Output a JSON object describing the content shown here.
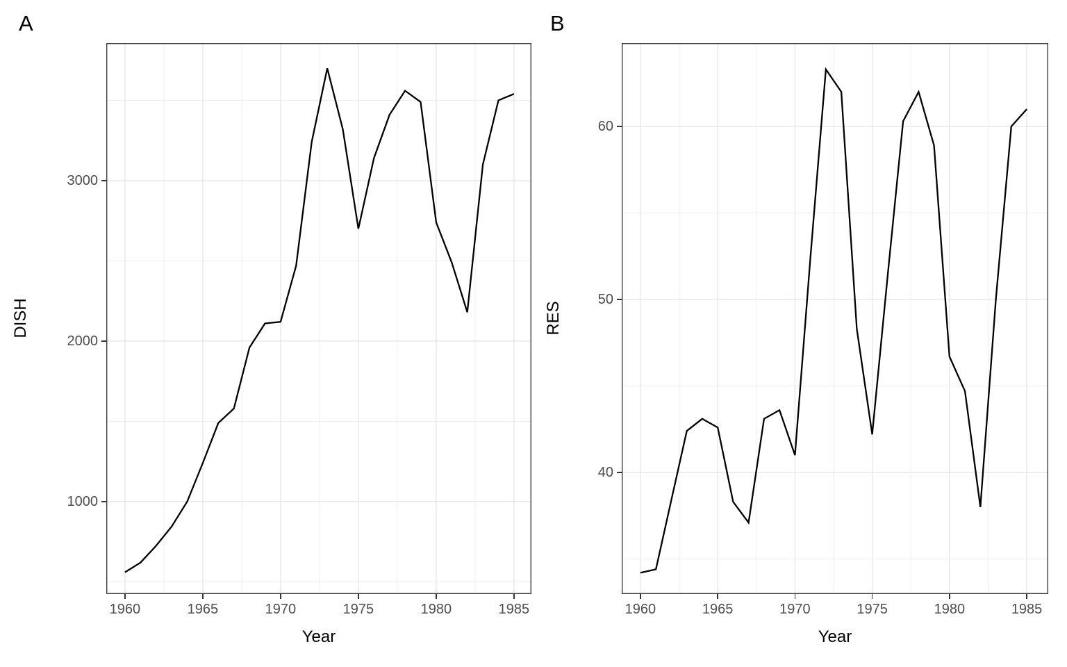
{
  "figure": {
    "panel_a_label": "A",
    "panel_b_label": "B"
  },
  "style": {
    "background": "#ffffff",
    "line_color": "#000000",
    "grid_major_color": "#e3e3e3",
    "grid_minor_color": "#eeeeee",
    "panel_border_color": "#3c3c3c",
    "tick_color": "#333333",
    "tick_label_color": "#4d4d4d"
  },
  "chart_data": [
    {
      "id": "A",
      "type": "line",
      "title": "",
      "xlabel": "Year",
      "ylabel": "DISH",
      "grid": true,
      "legend": false,
      "x": [
        1960,
        1961,
        1962,
        1963,
        1964,
        1965,
        1966,
        1967,
        1968,
        1969,
        1970,
        1971,
        1972,
        1973,
        1974,
        1975,
        1976,
        1977,
        1978,
        1979,
        1980,
        1981,
        1982,
        1983,
        1984,
        1985
      ],
      "values": [
        560,
        620,
        725,
        845,
        1000,
        1240,
        1490,
        1580,
        1960,
        2110,
        2120,
        2470,
        3240,
        3700,
        3320,
        2700,
        3140,
        3410,
        3560,
        3490,
        2740,
        2490,
        2180,
        3100,
        3500,
        3540
      ],
      "xlim": [
        1958.8,
        1986.12
      ],
      "ylim": [
        424,
        3857
      ],
      "x_major_ticks": [
        1960,
        1965,
        1970,
        1975,
        1980,
        1985
      ],
      "x_tick_labels": [
        "1960",
        "1965",
        "1970",
        "1975",
        "1980",
        "1985"
      ],
      "x_minor": [
        1962.5,
        1967.5,
        1972.5,
        1977.5,
        1982.5
      ],
      "y_major_ticks": [
        1000,
        2000,
        3000
      ],
      "y_tick_labels": [
        "1000",
        "2000",
        "3000"
      ],
      "y_minor": [
        500,
        1500,
        2500,
        3500
      ]
    },
    {
      "id": "B",
      "type": "line",
      "title": "",
      "xlabel": "Year",
      "ylabel": "RES",
      "grid": true,
      "legend": false,
      "x": [
        1960,
        1961,
        1962,
        1963,
        1964,
        1965,
        1966,
        1967,
        1968,
        1969,
        1970,
        1971,
        1972,
        1973,
        1974,
        1975,
        1976,
        1977,
        1978,
        1979,
        1980,
        1981,
        1982,
        1983,
        1984,
        1985
      ],
      "values": [
        34.2,
        34.4,
        38.4,
        42.4,
        43.1,
        42.6,
        38.3,
        37.1,
        43.1,
        43.6,
        41.0,
        52.4,
        63.3,
        62.0,
        48.3,
        42.2,
        51.4,
        60.3,
        62.0,
        58.9,
        46.7,
        44.7,
        38.0,
        50.0,
        60.0,
        61.0
      ],
      "xlim": [
        1958.79,
        1986.39
      ],
      "ylim": [
        32.97,
        64.82
      ],
      "x_major_ticks": [
        1960,
        1965,
        1970,
        1975,
        1980,
        1985
      ],
      "x_tick_labels": [
        "1960",
        "1965",
        "1970",
        "1975",
        "1980",
        "1985"
      ],
      "x_minor": [
        1962.5,
        1967.5,
        1972.5,
        1977.5,
        1982.5
      ],
      "y_major_ticks": [
        40,
        50,
        60
      ],
      "y_tick_labels": [
        "40",
        "50",
        "60"
      ],
      "y_minor": [
        35,
        45,
        55
      ]
    }
  ]
}
